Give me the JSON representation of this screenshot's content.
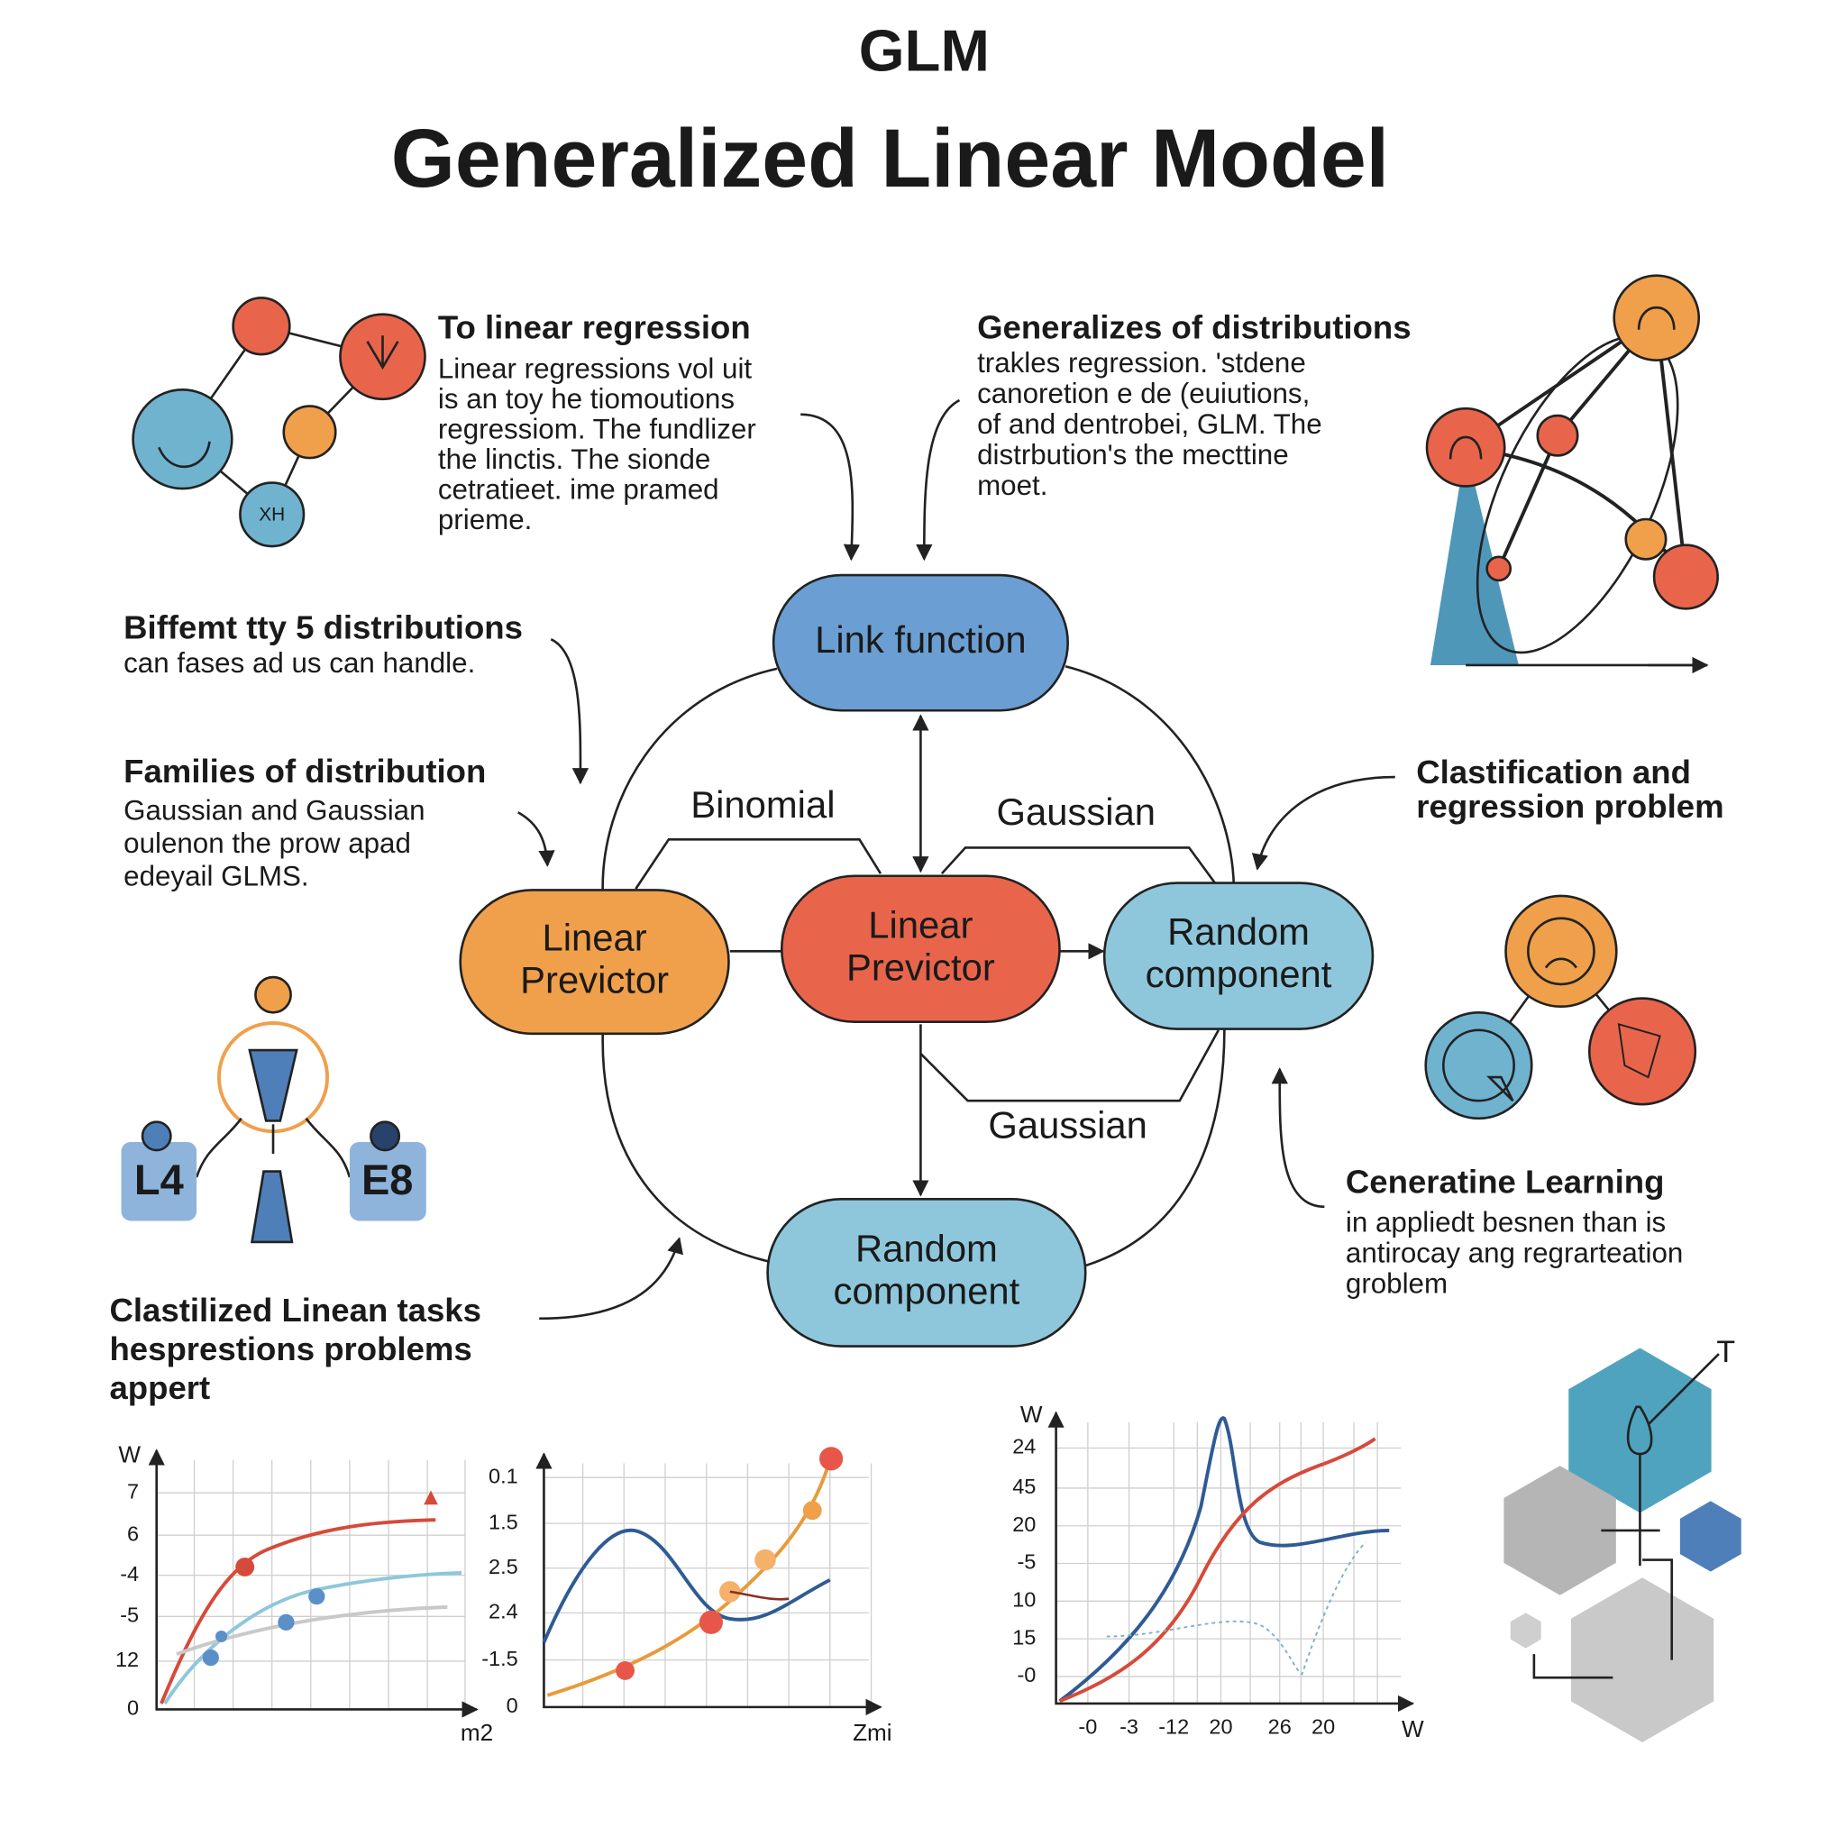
{
  "header": {
    "subtitle": "GLM",
    "title": "Generalized Linear Model"
  },
  "notes": [
    {
      "title": [
        "To linear regression"
      ],
      "lines": [
        "Linear regressions vol uit",
        "is an toy he tiomoutions",
        "regressiom. The fundlizer",
        "the linctis. The sionde",
        "cetratieet. ime pramed",
        "prieme."
      ]
    },
    {
      "title": [
        "Generalizes of distributions"
      ],
      "lines": [
        "trakles regression. 'stdene",
        "canoretion e de (euiutions,",
        "of and dentrobei, GLM.  The",
        "distrbution's the mecttine",
        "moet."
      ]
    },
    {
      "title": [
        "Biffemt tty 5 distributions"
      ],
      "lines": [
        "can fases ad us can handle."
      ]
    },
    {
      "title": [
        "Families of distribution"
      ],
      "lines": [
        "Gaussian and Gaussian",
        "oulenon the prow apad",
        "edeyail GLMS."
      ]
    },
    {
      "title": [
        "Clastification and",
        "regression problem"
      ]
    },
    {
      "title": [
        "Ceneratine Learning"
      ],
      "lines": [
        "in appliedt besnen than is",
        "antirocay ang regrarteation",
        "groblem"
      ]
    },
    {
      "title": [
        "Clastilized Linean tasks",
        "hesprestions problems",
        "appert"
      ]
    }
  ],
  "nodes": [
    {
      "label": [
        "Link function"
      ]
    },
    {
      "label": [
        "Linear",
        "Previctor"
      ]
    },
    {
      "label": [
        "Linear",
        "Previctor"
      ]
    },
    {
      "label": [
        "Random",
        "component"
      ]
    },
    {
      "label": [
        "Random",
        "component"
      ]
    }
  ],
  "edge_labels": [
    "Binomial",
    "Gaussian",
    "Gaussian"
  ],
  "icon_labels": [
    "XH",
    "L4",
    "E8"
  ],
  "panels": [
    {
      "y_title": "W",
      "y_labels": [
        "7",
        "6",
        "-4",
        "-5",
        "12",
        "0"
      ],
      "x_title": "m2"
    },
    {
      "y_labels": [
        "0.1",
        "1.5",
        "2.5",
        "2.4",
        "-1.5",
        "0"
      ],
      "x_title": "Zmi"
    },
    {
      "y_title": "W",
      "y_labels": [
        "24",
        "45",
        "20",
        "-5",
        "10",
        "15",
        "-0"
      ],
      "x_labels": [
        "-0",
        "-3",
        "-12",
        "20",
        "26",
        "20"
      ],
      "x_title": "W"
    },
    {
      "label": "T"
    }
  ]
}
